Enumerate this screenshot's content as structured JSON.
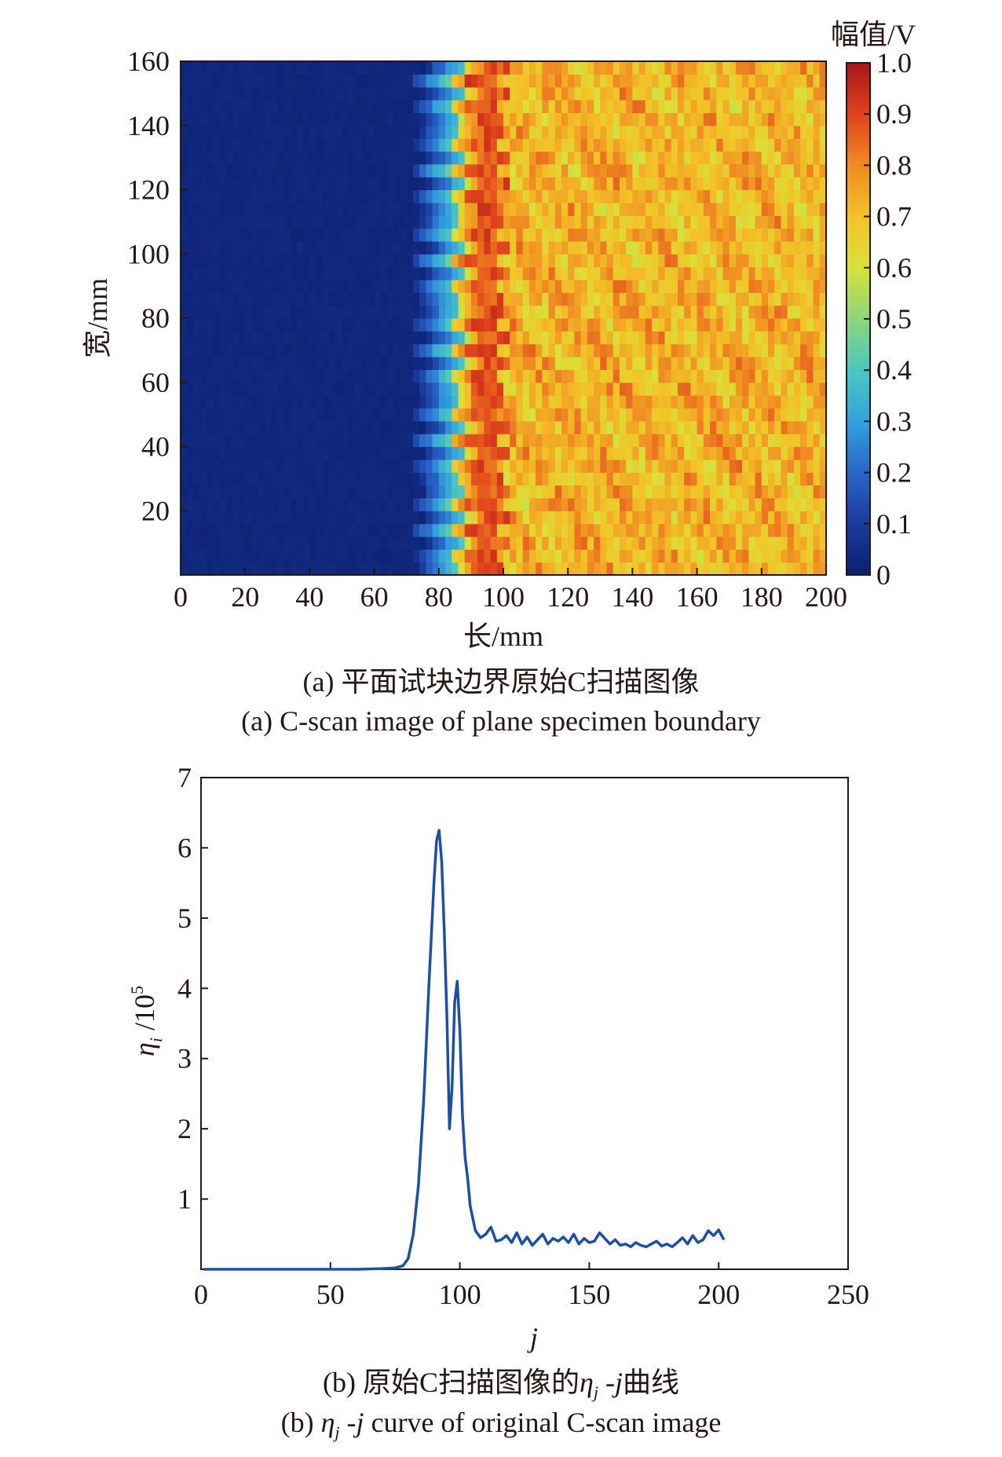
{
  "chart_data": [
    {
      "type": "heatmap",
      "xlabel": "长/mm",
      "ylabel": "宽/mm",
      "colorbar_title": "幅值/V",
      "caption_cn": "(a) 平面试块边界原始C扫描图像",
      "caption_en": "(a) C-scan image of plane specimen boundary",
      "xlim": [
        0,
        200
      ],
      "ylim": [
        0,
        160
      ],
      "x_ticks": [
        0,
        20,
        40,
        60,
        80,
        100,
        120,
        140,
        160,
        180,
        200
      ],
      "y_ticks": [
        20,
        40,
        60,
        80,
        100,
        120,
        140,
        160
      ],
      "colorbar_ticks": [
        "0",
        "0.1",
        "0.2",
        "0.3",
        "0.4",
        "0.5",
        "0.6",
        "0.7",
        "0.8",
        "0.9",
        "1.0"
      ],
      "clim": [
        0,
        1.0
      ],
      "colormap": [
        "#0b1f6e",
        "#1a3b9c",
        "#2a65c8",
        "#33a2dc",
        "#4bc7c0",
        "#8cd67a",
        "#d9e13a",
        "#f2c228",
        "#f08a22",
        "#e0421c",
        "#a8161a"
      ],
      "boundary_x_mm": 85,
      "background_amplitude": 0.02,
      "specimen_amplitude_mean": 0.72
    },
    {
      "type": "line",
      "xlabel": "j",
      "ylabel": "η_i /10^5",
      "caption_cn": "(b) 原始C扫描图像的η_j -j曲线",
      "caption_en": "(b) η_j -j curve of original C-scan image",
      "xlim": [
        0,
        250
      ],
      "ylim": [
        0,
        7
      ],
      "x_ticks": [
        0,
        50,
        100,
        150,
        200,
        250
      ],
      "y_ticks": [
        1,
        2,
        3,
        4,
        5,
        6,
        7
      ],
      "line_color": "#1f4fa3",
      "x": [
        1,
        10,
        20,
        30,
        40,
        50,
        60,
        70,
        75,
        78,
        80,
        82,
        84,
        86,
        88,
        90,
        91,
        92,
        93,
        94,
        95,
        96,
        97,
        98,
        99,
        100,
        101,
        102,
        103,
        104,
        106,
        108,
        110,
        112,
        114,
        116,
        118,
        120,
        122,
        124,
        126,
        128,
        130,
        132,
        134,
        136,
        138,
        140,
        142,
        144,
        146,
        148,
        150,
        152,
        154,
        156,
        158,
        160,
        162,
        164,
        166,
        168,
        170,
        172,
        174,
        176,
        178,
        180,
        182,
        184,
        186,
        188,
        190,
        192,
        194,
        196,
        198,
        200,
        202
      ],
      "y": [
        0.0,
        0.0,
        0.0,
        0.0,
        0.0,
        0.0,
        0.0,
        0.01,
        0.02,
        0.05,
        0.15,
        0.5,
        1.2,
        2.4,
        4.0,
        5.5,
        6.1,
        6.25,
        5.8,
        4.8,
        3.6,
        2.0,
        2.6,
        3.8,
        4.1,
        3.4,
        2.2,
        1.6,
        1.3,
        0.9,
        0.55,
        0.45,
        0.5,
        0.6,
        0.4,
        0.42,
        0.48,
        0.38,
        0.52,
        0.36,
        0.46,
        0.34,
        0.42,
        0.5,
        0.36,
        0.44,
        0.4,
        0.46,
        0.38,
        0.5,
        0.36,
        0.44,
        0.38,
        0.4,
        0.52,
        0.44,
        0.36,
        0.42,
        0.34,
        0.36,
        0.32,
        0.38,
        0.34,
        0.32,
        0.36,
        0.4,
        0.33,
        0.36,
        0.32,
        0.38,
        0.45,
        0.36,
        0.48,
        0.38,
        0.42,
        0.55,
        0.48,
        0.56,
        0.42
      ]
    }
  ]
}
